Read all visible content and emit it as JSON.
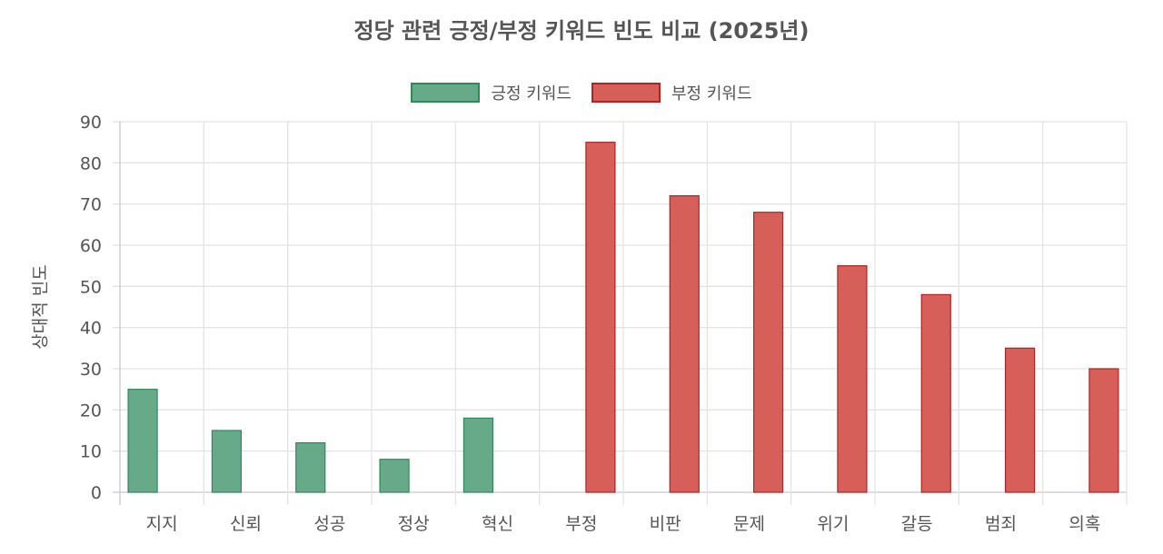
{
  "title": "정당 관련 긍정/부정 키워드 빈도 비교 (2025년)",
  "legend": [
    {
      "label": "긍정 키워드",
      "fill": "#67aa8a",
      "border": "#2e8b57"
    },
    {
      "label": "부정 키워드",
      "fill": "#d65f5a",
      "border": "#b22222"
    }
  ],
  "colors": {
    "grid": "#e4e4e4",
    "axis": "#c8c8c8",
    "text": "#555555"
  },
  "chart_data": {
    "type": "bar",
    "title": "정당 관련 긍정/부정 키워드 빈도 비교 (2025년)",
    "xlabel": "",
    "ylabel": "상대적 빈도",
    "ylim": [
      0,
      90
    ],
    "yticks": [
      0,
      10,
      20,
      30,
      40,
      50,
      60,
      70,
      80,
      90
    ],
    "grid": true,
    "legend_position": "top",
    "categories": [
      "지지",
      "신뢰",
      "성공",
      "정상",
      "혁신",
      "부정",
      "비판",
      "문제",
      "위기",
      "갈등",
      "범죄",
      "의혹"
    ],
    "series": [
      {
        "name": "긍정 키워드",
        "values": [
          25,
          15,
          12,
          8,
          18,
          null,
          null,
          null,
          null,
          null,
          null,
          null
        ]
      },
      {
        "name": "부정 키워드",
        "values": [
          null,
          null,
          null,
          null,
          null,
          85,
          72,
          68,
          55,
          48,
          35,
          30
        ]
      }
    ]
  }
}
